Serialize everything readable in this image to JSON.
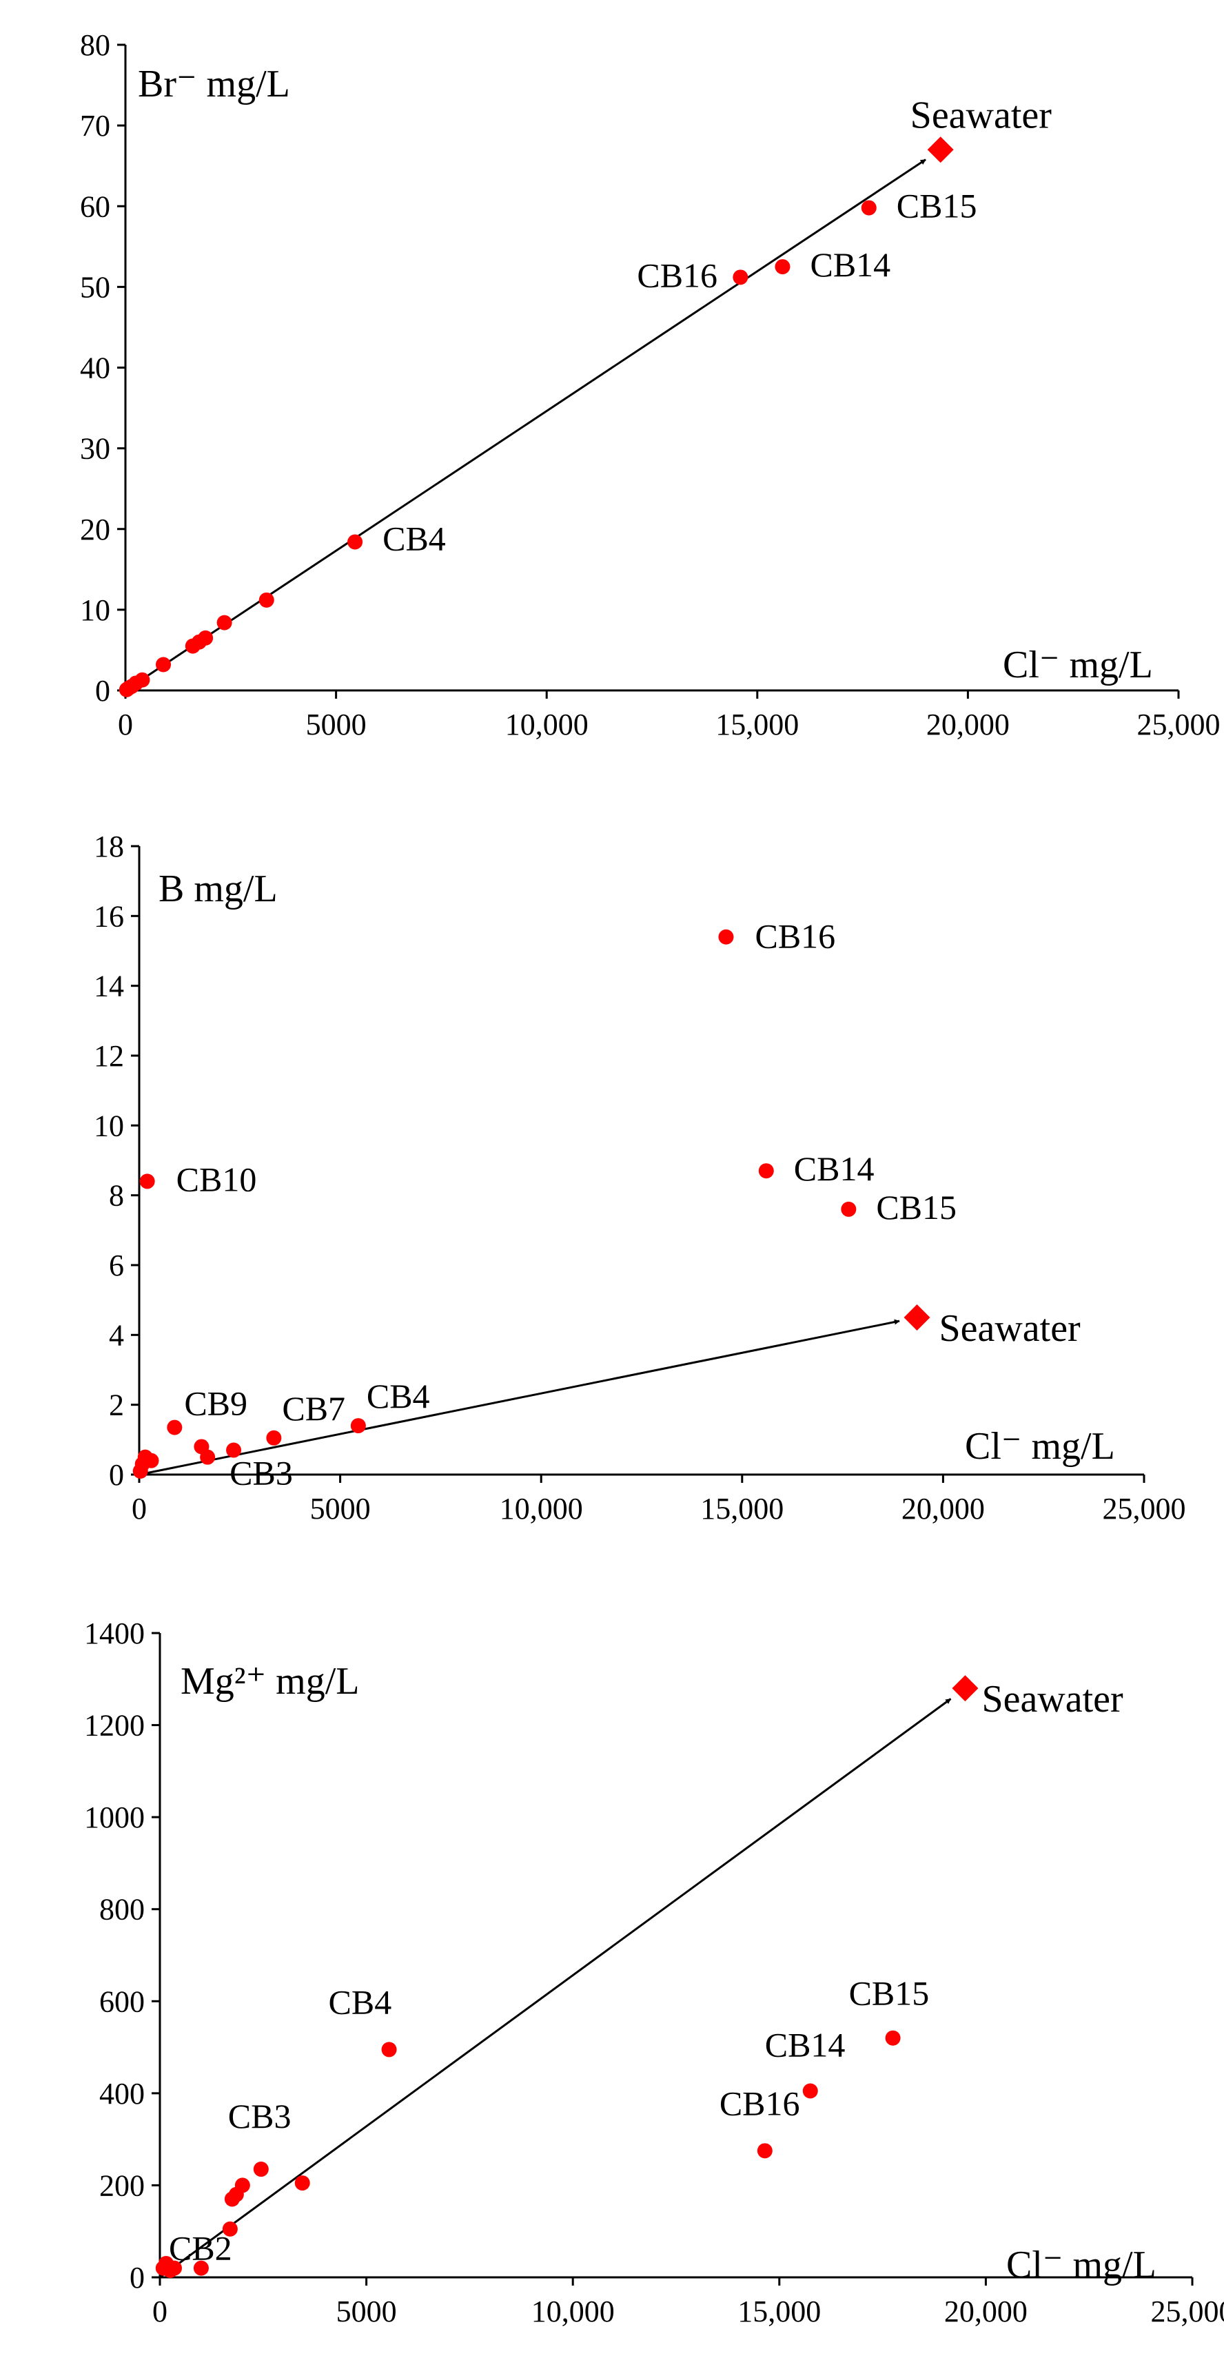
{
  "chart_data": [
    {
      "type": "scatter",
      "title": "",
      "ylabel": "Br⁻ mg/L",
      "xlabel": "Cl⁻ mg/L",
      "xlim": [
        0,
        25000
      ],
      "ylim": [
        0,
        80
      ],
      "xticks": [
        0,
        5000,
        10000,
        15000,
        20000,
        25000
      ],
      "xtick_labels": [
        "0",
        "5000",
        "10,000",
        "15,000",
        "20,000",
        "25,000"
      ],
      "yticks": [
        0,
        10,
        20,
        30,
        40,
        50,
        60,
        70,
        80
      ],
      "ytick_labels": [
        "0",
        "10",
        "20",
        "30",
        "40",
        "50",
        "60",
        "70",
        "80"
      ],
      "grid": false,
      "marker_color": "#ff0000",
      "points": [
        {
          "x": 30,
          "y": 0.1,
          "label": ""
        },
        {
          "x": 80,
          "y": 0.3,
          "label": ""
        },
        {
          "x": 150,
          "y": 0.5,
          "label": ""
        },
        {
          "x": 250,
          "y": 0.9,
          "label": ""
        },
        {
          "x": 400,
          "y": 1.3,
          "label": ""
        },
        {
          "x": 900,
          "y": 3.2,
          "label": ""
        },
        {
          "x": 1600,
          "y": 5.5,
          "label": ""
        },
        {
          "x": 1750,
          "y": 6.0,
          "label": ""
        },
        {
          "x": 1900,
          "y": 6.5,
          "label": ""
        },
        {
          "x": 2350,
          "y": 8.4,
          "label": ""
        },
        {
          "x": 3350,
          "y": 11.2,
          "label": ""
        },
        {
          "x": 5450,
          "y": 18.4,
          "label": "CB4"
        },
        {
          "x": 14600,
          "y": 51.2,
          "label": "CB16"
        },
        {
          "x": 15600,
          "y": 52.5,
          "label": "CB14"
        },
        {
          "x": 17650,
          "y": 59.8,
          "label": "CB15"
        }
      ],
      "seawater": {
        "x": 19350,
        "y": 67,
        "label": "Seawater"
      },
      "trend": {
        "from": [
          0,
          0
        ],
        "to": [
          19350,
          67
        ]
      }
    },
    {
      "type": "scatter",
      "title": "",
      "ylabel": "B mg/L",
      "xlabel": "Cl⁻ mg/L",
      "xlim": [
        0,
        25000
      ],
      "ylim": [
        0,
        18
      ],
      "xticks": [
        0,
        5000,
        10000,
        15000,
        20000,
        25000
      ],
      "xtick_labels": [
        "0",
        "5000",
        "10,000",
        "15,000",
        "20,000",
        "25,000"
      ],
      "yticks": [
        0,
        2,
        4,
        6,
        8,
        10,
        12,
        14,
        16,
        18
      ],
      "ytick_labels": [
        "0",
        "2",
        "4",
        "6",
        "8",
        "10",
        "12",
        "14",
        "16",
        "18"
      ],
      "grid": false,
      "marker_color": "#ff0000",
      "points": [
        {
          "x": 30,
          "y": 0.1,
          "label": ""
        },
        {
          "x": 80,
          "y": 0.3,
          "label": ""
        },
        {
          "x": 150,
          "y": 0.5,
          "label": ""
        },
        {
          "x": 300,
          "y": 0.4,
          "label": ""
        },
        {
          "x": 200,
          "y": 8.4,
          "label": "CB10"
        },
        {
          "x": 880,
          "y": 1.35,
          "label": "CB9"
        },
        {
          "x": 1550,
          "y": 0.8,
          "label": ""
        },
        {
          "x": 1700,
          "y": 0.5,
          "label": "CB3"
        },
        {
          "x": 2350,
          "y": 0.7,
          "label": ""
        },
        {
          "x": 3350,
          "y": 1.05,
          "label": "CB7"
        },
        {
          "x": 5450,
          "y": 1.4,
          "label": "CB4"
        },
        {
          "x": 14600,
          "y": 15.4,
          "label": "CB16"
        },
        {
          "x": 15600,
          "y": 8.7,
          "label": "CB14"
        },
        {
          "x": 17650,
          "y": 7.6,
          "label": "CB15"
        }
      ],
      "seawater": {
        "x": 19350,
        "y": 4.5,
        "label": "Seawater"
      },
      "trend": {
        "from": [
          0,
          0
        ],
        "to": [
          19350,
          4.5
        ]
      }
    },
    {
      "type": "scatter",
      "title": "",
      "ylabel": "Mg²⁺ mg/L",
      "xlabel": "Cl⁻ mg/L",
      "xlim": [
        0,
        25000
      ],
      "ylim": [
        0,
        1400
      ],
      "xticks": [
        0,
        5000,
        10000,
        15000,
        20000,
        25000
      ],
      "xtick_labels": [
        "0",
        "5000",
        "10,000",
        "15,000",
        "20,000",
        "25,000"
      ],
      "yticks": [
        0,
        200,
        400,
        600,
        800,
        1000,
        1200,
        1400
      ],
      "ytick_labels": [
        "0",
        "200",
        "400",
        "600",
        "800",
        "1000",
        "1200",
        "1400"
      ],
      "grid": false,
      "marker_color": "#ff0000",
      "points": [
        {
          "x": 80,
          "y": 20,
          "label": ""
        },
        {
          "x": 150,
          "y": 30,
          "label": ""
        },
        {
          "x": 250,
          "y": 15,
          "label": ""
        },
        {
          "x": 350,
          "y": 20,
          "label": "CB2"
        },
        {
          "x": 1000,
          "y": 20,
          "label": ""
        },
        {
          "x": 1700,
          "y": 105,
          "label": ""
        },
        {
          "x": 1750,
          "y": 170,
          "label": ""
        },
        {
          "x": 1850,
          "y": 180,
          "label": ""
        },
        {
          "x": 2000,
          "y": 200,
          "label": ""
        },
        {
          "x": 2450,
          "y": 235,
          "label": "CB3"
        },
        {
          "x": 3450,
          "y": 205,
          "label": ""
        },
        {
          "x": 5550,
          "y": 495,
          "label": "CB4"
        },
        {
          "x": 14650,
          "y": 275,
          "label": "CB16"
        },
        {
          "x": 15750,
          "y": 405,
          "label": "CB14"
        },
        {
          "x": 17750,
          "y": 520,
          "label": "CB15"
        }
      ],
      "seawater": {
        "x": 19500,
        "y": 1280,
        "label": "Seawater"
      },
      "trend": {
        "from": [
          0,
          0
        ],
        "to": [
          19500,
          1280
        ]
      }
    }
  ]
}
